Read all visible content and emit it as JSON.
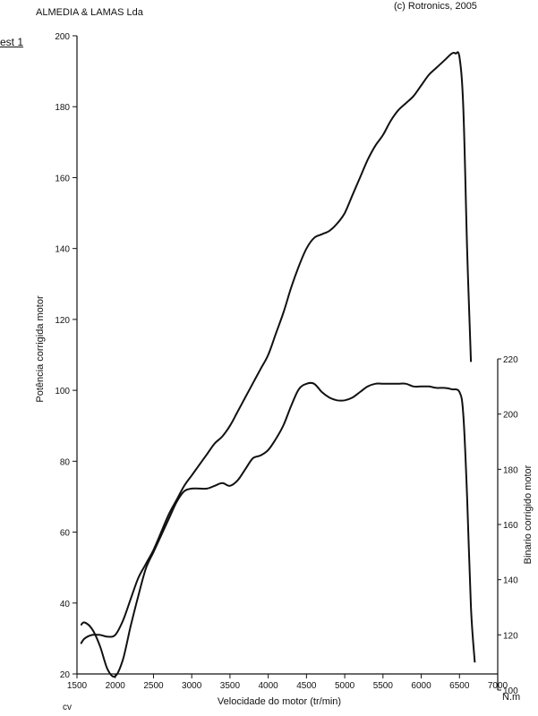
{
  "header": {
    "company": "ALMEDIA & LAMAS Lda",
    "copyright": "(c) Rotronics, 2005",
    "test_label": "est 1"
  },
  "chart_data": {
    "type": "line",
    "title": "",
    "xlabel": "Velocidade do motor (tr/min)",
    "ylabel": "Potência corrigida  motor",
    "y2label": "Binario corrigido motor",
    "unit_left": "cv",
    "unit_right": "N.m",
    "xlim": [
      1500,
      7000
    ],
    "ylim": [
      20,
      200
    ],
    "y2lim": [
      100,
      220
    ],
    "x_ticks": [
      1500,
      2000,
      2500,
      3000,
      3500,
      4000,
      4500,
      5000,
      5500,
      6000,
      6500,
      7000
    ],
    "y_ticks": [
      20,
      40,
      60,
      80,
      100,
      120,
      140,
      160,
      180,
      200
    ],
    "y2_ticks": [
      100,
      120,
      140,
      160,
      180,
      200,
      220
    ],
    "grid": false,
    "series": [
      {
        "axis": "left",
        "color": "#111111",
        "x": [
          1550,
          1600,
          1700,
          1800,
          1900,
          2000,
          2100,
          2200,
          2300,
          2400,
          2500,
          2600,
          2700,
          2800,
          2900,
          3000,
          3100,
          3200,
          3300,
          3400,
          3500,
          3600,
          3700,
          3800,
          3900,
          4000,
          4100,
          4200,
          4300,
          4400,
          4500,
          4600,
          4700,
          4800,
          4900,
          5000,
          5100,
          5200,
          5300,
          5400,
          5500,
          5600,
          5700,
          5800,
          5900,
          6000,
          6100,
          6200,
          6300,
          6400,
          6450,
          6500,
          6550,
          6600,
          6650
        ],
        "values": [
          28.5,
          30,
          31,
          31,
          30.5,
          31,
          35,
          41,
          47,
          51,
          55,
          60,
          65,
          69,
          73,
          76,
          79,
          82,
          85,
          87,
          90,
          94,
          98,
          102,
          106,
          110,
          116,
          122,
          129,
          135,
          140,
          143,
          144,
          145,
          147,
          150,
          155,
          160,
          165,
          169,
          172,
          176,
          179,
          181,
          183,
          186,
          189,
          191,
          193,
          195,
          195,
          194,
          180,
          140,
          108
        ]
      },
      {
        "axis": "right",
        "color": "#111111",
        "x": [
          1550,
          1600,
          1700,
          1800,
          1900,
          2000,
          2100,
          2200,
          2300,
          2400,
          2500,
          2600,
          2700,
          2800,
          2900,
          3000,
          3100,
          3200,
          3300,
          3400,
          3500,
          3600,
          3700,
          3800,
          3900,
          4000,
          4100,
          4200,
          4300,
          4400,
          4500,
          4600,
          4700,
          4800,
          4900,
          5000,
          5100,
          5200,
          5300,
          5400,
          5500,
          5600,
          5700,
          5800,
          5900,
          6000,
          6100,
          6200,
          6300,
          6400,
          6500,
          6550,
          6600,
          6650,
          6700
        ],
        "values": [
          123.5,
          124.5,
          122,
          116,
          107.5,
          105,
          111,
          123,
          134,
          144,
          150,
          156,
          162,
          168,
          172,
          173,
          173,
          173,
          174,
          175,
          174,
          176,
          180,
          184,
          185,
          187,
          191,
          196,
          203,
          209,
          211,
          211,
          208,
          206,
          205,
          205,
          206,
          208,
          210,
          211,
          211,
          211,
          211,
          211,
          210,
          210,
          210,
          209.5,
          209.5,
          209,
          208,
          200,
          170,
          130,
          110
        ]
      }
    ]
  }
}
